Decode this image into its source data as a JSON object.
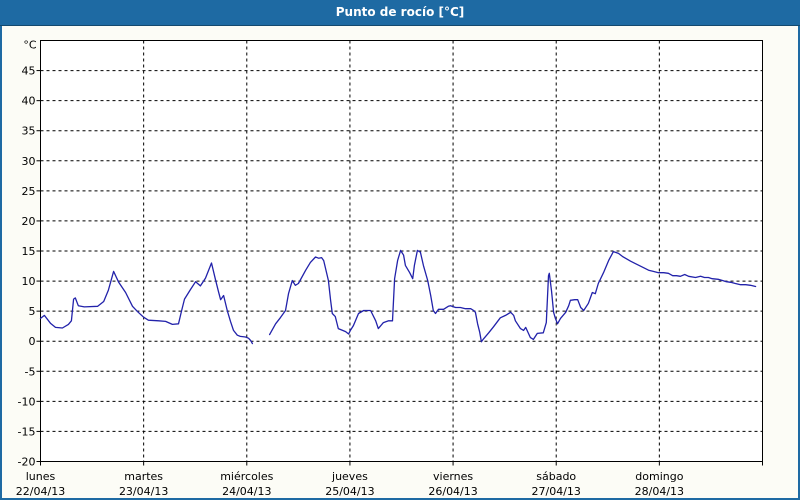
{
  "window": {
    "title": "Punto de rocío [°C]"
  },
  "colors": {
    "titlebar_bg": "#1e6aa3",
    "titlebar_text": "#ffffff",
    "frame_border": "#1e6aa3",
    "outer_bg": "#fcfcf6",
    "plot_bg": "#ffffff",
    "plot_border": "#000000",
    "grid": "#000000",
    "line": "#2222aa",
    "label_text": "#000000"
  },
  "chart_data": {
    "type": "line",
    "title": "Punto de rocío [°C]",
    "y_unit_label": "°C",
    "xlabel": "",
    "ylabel": "",
    "ylim": [
      -20,
      50
    ],
    "y_ticks": [
      45,
      40,
      35,
      30,
      25,
      20,
      15,
      10,
      5,
      0,
      -5,
      -10,
      -15,
      -20
    ],
    "x_range_hours": [
      0,
      168
    ],
    "grid": "dashed",
    "legend": "none",
    "days": [
      {
        "name": "lunes",
        "date": "22/04/13"
      },
      {
        "name": "martes",
        "date": "23/04/13"
      },
      {
        "name": "miércoles",
        "date": "24/04/13"
      },
      {
        "name": "jueves",
        "date": "25/04/13"
      },
      {
        "name": "viernes",
        "date": "26/04/13"
      },
      {
        "name": "sábado",
        "date": "27/04/13"
      },
      {
        "name": "domingo",
        "date": "28/04/13"
      }
    ],
    "series": [
      {
        "name": "Punto de rocío",
        "unit": "°C",
        "color": "#2222aa",
        "segments": [
          [
            [
              0,
              3.8
            ],
            [
              0.9,
              4.3
            ],
            [
              2.3,
              3.0
            ],
            [
              3.5,
              2.3
            ],
            [
              5.1,
              2.2
            ],
            [
              6.5,
              2.8
            ],
            [
              7.2,
              3.4
            ],
            [
              7.7,
              7.0
            ],
            [
              8.1,
              7.2
            ],
            [
              8.8,
              5.9
            ],
            [
              10.2,
              5.7
            ],
            [
              13.3,
              5.8
            ],
            [
              14.7,
              6.6
            ],
            [
              15.8,
              8.5
            ],
            [
              17.0,
              11.6
            ],
            [
              18.2,
              9.8
            ],
            [
              19.8,
              8.1
            ],
            [
              21.4,
              5.8
            ],
            [
              22.6,
              4.9
            ],
            [
              24.0,
              4.0
            ],
            [
              25.1,
              3.5
            ],
            [
              27.5,
              3.4
            ],
            [
              29.1,
              3.3
            ],
            [
              30.7,
              2.8
            ],
            [
              32.1,
              2.9
            ],
            [
              32.8,
              5.0
            ],
            [
              33.5,
              7.0
            ],
            [
              34.9,
              8.6
            ],
            [
              36.1,
              9.9
            ],
            [
              37.2,
              9.2
            ],
            [
              38.4,
              10.5
            ],
            [
              39.8,
              13.0
            ],
            [
              40.7,
              10.3
            ],
            [
              41.4,
              8.3
            ],
            [
              41.9,
              6.9
            ],
            [
              42.6,
              7.6
            ],
            [
              43.5,
              5.0
            ],
            [
              44.2,
              3.3
            ],
            [
              44.9,
              1.8
            ],
            [
              45.8,
              1.0
            ],
            [
              46.5,
              0.8
            ],
            [
              47.7,
              0.7
            ],
            [
              48.4,
              0.5
            ],
            [
              48.9,
              0.1
            ],
            [
              49.3,
              -0.4
            ]
          ],
          [
            [
              53.3,
              1.1
            ],
            [
              54.0,
              2.0
            ],
            [
              54.7,
              2.9
            ],
            [
              55.8,
              3.9
            ],
            [
              57.0,
              5.1
            ],
            [
              57.7,
              7.9
            ],
            [
              58.6,
              10.1
            ],
            [
              59.3,
              9.3
            ],
            [
              60.0,
              9.6
            ],
            [
              61.7,
              11.8
            ],
            [
              62.8,
              13.1
            ],
            [
              64.0,
              14.0
            ],
            [
              64.7,
              13.8
            ],
            [
              65.4,
              13.9
            ],
            [
              65.9,
              13.4
            ],
            [
              67.0,
              10.1
            ],
            [
              67.5,
              6.8
            ],
            [
              67.9,
              4.6
            ],
            [
              68.6,
              4.1
            ],
            [
              69.3,
              2.1
            ],
            [
              70.3,
              1.8
            ],
            [
              71.0,
              1.6
            ],
            [
              71.7,
              1.2
            ],
            [
              72.1,
              1.8
            ],
            [
              72.8,
              2.6
            ],
            [
              74.0,
              4.6
            ],
            [
              75.2,
              5.1
            ],
            [
              76.8,
              5.1
            ],
            [
              78.0,
              3.4
            ],
            [
              78.6,
              2.1
            ],
            [
              79.8,
              3.1
            ],
            [
              81.0,
              3.4
            ],
            [
              81.9,
              3.4
            ],
            [
              82.4,
              10.4
            ],
            [
              83.1,
              13.4
            ],
            [
              83.8,
              15.1
            ],
            [
              84.5,
              14.3
            ],
            [
              84.9,
              12.6
            ],
            [
              85.9,
              11.4
            ],
            [
              86.6,
              10.4
            ],
            [
              87.0,
              12.6
            ],
            [
              87.7,
              15.1
            ],
            [
              88.4,
              14.8
            ],
            [
              89.1,
              12.6
            ],
            [
              90.1,
              10.1
            ],
            [
              90.8,
              7.6
            ],
            [
              91.4,
              5.1
            ],
            [
              91.9,
              4.6
            ],
            [
              92.6,
              5.3
            ],
            [
              93.8,
              5.3
            ],
            [
              94.9,
              5.8
            ],
            [
              95.4,
              5.9
            ],
            [
              96.6,
              5.6
            ],
            [
              97.7,
              5.6
            ],
            [
              98.9,
              5.4
            ],
            [
              100.1,
              5.4
            ],
            [
              100.8,
              5.1
            ],
            [
              101.2,
              4.8
            ],
            [
              101.7,
              2.9
            ],
            [
              102.2,
              1.5
            ],
            [
              102.6,
              -0.1
            ],
            [
              103.1,
              0.4
            ],
            [
              104.3,
              1.4
            ],
            [
              105.4,
              2.4
            ],
            [
              107.0,
              3.9
            ],
            [
              108.2,
              4.3
            ],
            [
              109.4,
              4.8
            ],
            [
              110.1,
              4.3
            ],
            [
              110.5,
              3.4
            ],
            [
              111.7,
              2.1
            ],
            [
              112.4,
              1.8
            ],
            [
              112.9,
              2.3
            ],
            [
              114.0,
              0.6
            ],
            [
              114.7,
              0.3
            ],
            [
              115.6,
              1.3
            ],
            [
              117.0,
              1.4
            ],
            [
              117.7,
              3.1
            ],
            [
              118.2,
              10.9
            ],
            [
              118.4,
              11.3
            ],
            [
              118.9,
              8.4
            ],
            [
              119.4,
              4.8
            ],
            [
              119.8,
              3.8
            ],
            [
              120.3,
              2.9
            ],
            [
              121.0,
              3.8
            ],
            [
              122.2,
              4.8
            ],
            [
              122.9,
              5.9
            ],
            [
              123.3,
              6.8
            ],
            [
              124.3,
              6.9
            ],
            [
              125.0,
              6.9
            ],
            [
              125.7,
              5.6
            ],
            [
              126.4,
              5.1
            ],
            [
              127.5,
              6.3
            ],
            [
              128.4,
              8.1
            ],
            [
              129.1,
              7.9
            ],
            [
              129.8,
              9.6
            ],
            [
              131.0,
              11.4
            ],
            [
              132.2,
              13.4
            ],
            [
              133.3,
              14.9
            ],
            [
              134.5,
              14.6
            ],
            [
              135.4,
              14.1
            ],
            [
              136.1,
              13.8
            ],
            [
              137.3,
              13.3
            ],
            [
              138.4,
              12.9
            ],
            [
              140.1,
              12.3
            ],
            [
              141.5,
              11.8
            ],
            [
              142.6,
              11.6
            ],
            [
              143.8,
              11.4
            ],
            [
              145.0,
              11.4
            ],
            [
              146.1,
              11.3
            ],
            [
              147.1,
              10.9
            ],
            [
              148.0,
              10.9
            ],
            [
              148.9,
              10.8
            ],
            [
              149.9,
              11.1
            ],
            [
              150.8,
              10.8
            ],
            [
              152.4,
              10.6
            ],
            [
              153.6,
              10.8
            ],
            [
              154.5,
              10.6
            ],
            [
              155.4,
              10.6
            ],
            [
              156.3,
              10.4
            ],
            [
              157.7,
              10.3
            ],
            [
              158.7,
              10.1
            ],
            [
              159.6,
              9.9
            ],
            [
              160.6,
              9.8
            ],
            [
              161.7,
              9.6
            ],
            [
              162.9,
              9.4
            ],
            [
              164.1,
              9.4
            ],
            [
              165.2,
              9.3
            ],
            [
              166.4,
              9.1
            ]
          ]
        ]
      }
    ]
  }
}
